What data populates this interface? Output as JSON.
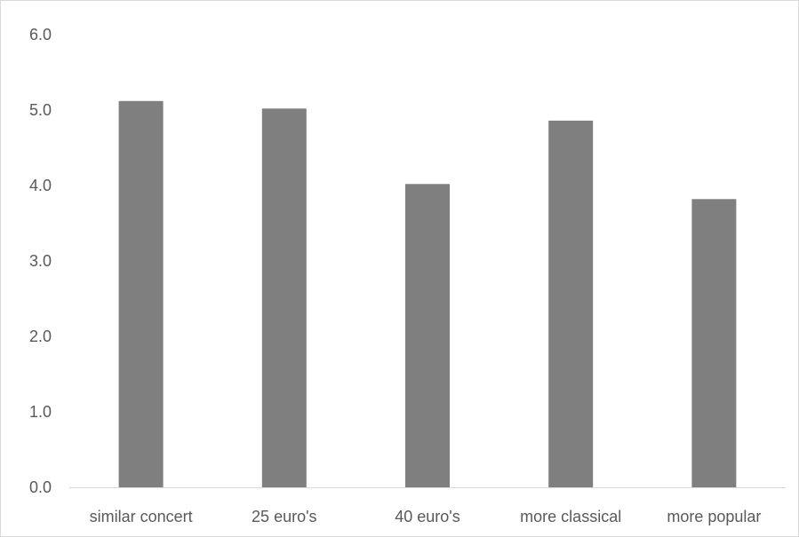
{
  "chart_data": {
    "type": "bar",
    "categories": [
      "similar concert",
      "25 euro's",
      "40 euro's",
      "more classical",
      "more popular"
    ],
    "values": [
      5.12,
      5.02,
      4.02,
      4.86,
      3.82
    ],
    "ylim": [
      0,
      6
    ],
    "yticks": [
      "0.0",
      "1.0",
      "2.0",
      "3.0",
      "4.0",
      "5.0",
      "6.0"
    ],
    "title": "",
    "xlabel": "",
    "ylabel": "",
    "grid": false,
    "legend": "none",
    "bar_color": "#7f7f7f",
    "axis_color": "#d9d9d9",
    "label_color": "#595959"
  }
}
